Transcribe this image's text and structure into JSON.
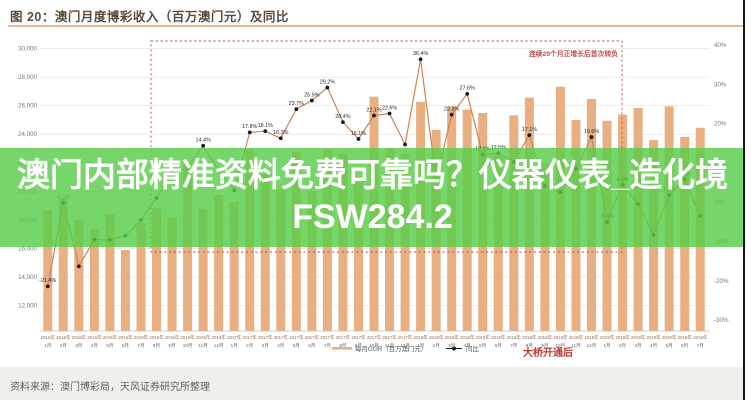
{
  "header": {
    "title": "图 20：澳门月度博彩收入（百万澳门元）及同比"
  },
  "overlay": {
    "line1": "澳门内部精准资料免费可靠吗？仪器仪表_造化境",
    "line2": "FSW284.2",
    "background_color": "#58cd48",
    "text_color": "#ffffff"
  },
  "footer": {
    "source": "资料来源：澳门博彩局，天风证券研究所整理"
  },
  "chart_data": {
    "type": "bar",
    "title": "图 20：澳门月度博彩收入（百万澳门元）及同比",
    "categories": [
      "2016年1月",
      "2016年2月",
      "2016年3月",
      "2016年4月",
      "2016年5月",
      "2016年6月",
      "2016年7月",
      "2016年8月",
      "2016年9月",
      "2016年10月",
      "2016年11月",
      "2016年12月",
      "2017年1月",
      "2017年2月",
      "2017年3月",
      "2017年4月",
      "2017年5月",
      "2017年6月",
      "2017年7月",
      "2017年8月",
      "2017年9月",
      "2017年10月",
      "2017年11月",
      "2017年12月",
      "2018年1月",
      "2018年2月",
      "2018年3月",
      "2018年4月",
      "2018年5月",
      "2018年6月",
      "2018年7月",
      "2018年8月",
      "2018年9月",
      "2018年10月",
      "2018年11月",
      "2018年12月",
      "2019年1月",
      "2019年2月",
      "2019年3月",
      "2019年4月",
      "2019年5月",
      "2019年6月",
      "2019年7月"
    ],
    "series": [
      {
        "name": "每月GGR（百万澳门元）",
        "type": "bar",
        "color": "#e8af83",
        "values": [
          18674,
          19518,
          17980,
          17340,
          18389,
          15885,
          17770,
          18837,
          18135,
          21811,
          18789,
          19743,
          19255,
          22990,
          21224,
          20164,
          22744,
          19992,
          22964,
          22676,
          21074,
          26630,
          23038,
          22641,
          26265,
          24312,
          25952,
          25727,
          25488,
          22490,
          25327,
          26559,
          21952,
          27328,
          24995,
          26468,
          24942,
          25370,
          25840,
          23588,
          25952,
          23812,
          24453
        ]
      },
      {
        "name": "同比",
        "type": "line",
        "color": "#cf8354",
        "marker_color": "#1a1a1a",
        "values": [
          -21.4,
          -0.1,
          -16.3,
          -9.5,
          -9.6,
          -8.5,
          -4.5,
          1.1,
          7.4,
          8.8,
          14.4,
          8.0,
          3.1,
          17.8,
          18.1,
          16.3,
          23.7,
          25.9,
          29.2,
          20.4,
          16.1,
          22.1,
          22.6,
          14.7,
          36.4,
          5.7,
          22.3,
          27.6,
          12.1,
          12.5,
          10.3,
          17.1,
          4.2,
          2.6,
          8.5,
          16.6,
          -5.0,
          4.4,
          -0.4,
          -8.3,
          1.8,
          5.9,
          -3.5
        ],
        "point_labels": [
          "-21.4%",
          "-0.1%",
          "",
          "",
          "",
          "",
          "",
          "",
          "",
          "",
          "14.4%",
          "",
          "",
          "17.8%",
          "18.1%",
          "16.3%",
          "23.7%",
          "25.9%",
          "29.2%",
          "20.4%",
          "16.1%",
          "22.1%",
          "22.6%",
          "",
          "36.4%",
          "",
          "22.3%",
          "27.6%",
          "12.1%",
          "12.5%",
          "",
          "17.1%",
          "",
          "",
          "",
          "16.6%",
          "-5.0%",
          "4.4%",
          "",
          "",
          "1.8%",
          "5.9%",
          ""
        ]
      }
    ],
    "left_axis": {
      "labels": [
        "30,000",
        "28,000",
        "26,000",
        "24,000",
        "22,000",
        "20,000",
        "18,000",
        "16,000",
        "14,000",
        "12,000"
      ],
      "values": [
        30000,
        28000,
        26000,
        24000,
        22000,
        20000,
        18000,
        16000,
        14000,
        12000
      ],
      "min": 10000,
      "max": 30000
    },
    "right_axis": {
      "labels": [
        "40%",
        "30%",
        "20%",
        "10%",
        "0%",
        "-10%",
        "-20%",
        "-30%"
      ],
      "values": [
        40,
        30,
        20,
        10,
        0,
        -10,
        -20,
        -30
      ]
    },
    "legend": [
      "每月GGR（百万澳门元）",
      "同比"
    ],
    "legend_position": "bottom-center",
    "grid": "horizontal",
    "annotations": {
      "box_label": "连续29个月正增长后首次转负",
      "box_color": "#c0504d",
      "bridge_label": "大桥开通后",
      "bridge_color": "#c0392b"
    }
  }
}
